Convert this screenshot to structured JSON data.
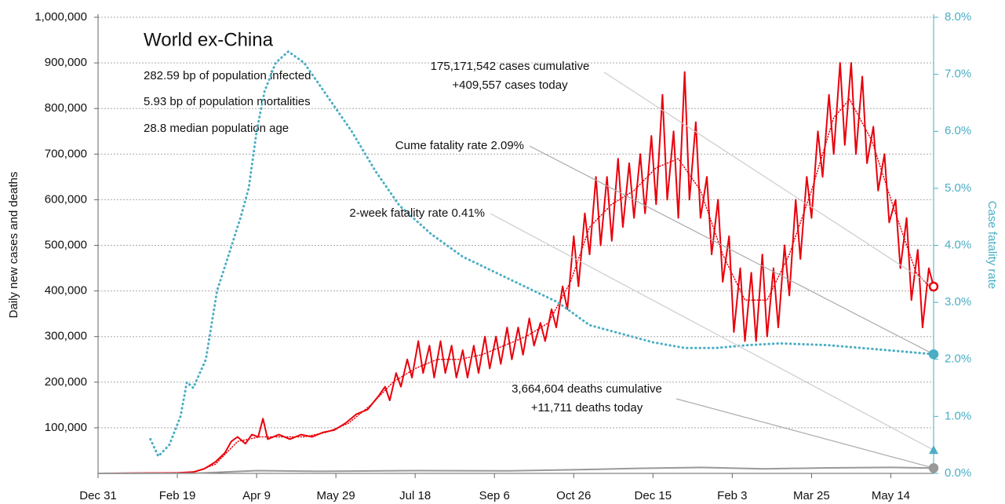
{
  "chart_data": {
    "type": "line",
    "title": "World ex-China",
    "subtitle": [
      "282.59 bp of population infected",
      "5.93 bp of population mortalities",
      "28.8 median population age"
    ],
    "ylabel": "Daily new cases and deaths",
    "y2label": "Case fatality rate",
    "xlim": [
      0,
      527
    ],
    "xticks": [
      {
        "value": 0,
        "label": "Dec 31"
      },
      {
        "value": 50,
        "label": "Feb 19"
      },
      {
        "value": 100,
        "label": "Apr 9"
      },
      {
        "value": 150,
        "label": "May 29"
      },
      {
        "value": 200,
        "label": "Jul 18"
      },
      {
        "value": 250,
        "label": "Sep 6"
      },
      {
        "value": 300,
        "label": "Oct 26"
      },
      {
        "value": 350,
        "label": "Dec 15"
      },
      {
        "value": 400,
        "label": "Feb 3"
      },
      {
        "value": 450,
        "label": "Mar 25"
      },
      {
        "value": 500,
        "label": "May 14"
      }
    ],
    "ylim": [
      0,
      1000000
    ],
    "yticks": [
      {
        "value": 100000,
        "label": "100,000"
      },
      {
        "value": 200000,
        "label": "200,000"
      },
      {
        "value": 300000,
        "label": "300,000"
      },
      {
        "value": 400000,
        "label": "400,000"
      },
      {
        "value": 500000,
        "label": "500,000"
      },
      {
        "value": 600000,
        "label": "600,000"
      },
      {
        "value": 700000,
        "label": "700,000"
      },
      {
        "value": 800000,
        "label": "800,000"
      },
      {
        "value": 900000,
        "label": "900,000"
      },
      {
        "value": 1000000,
        "label": "1,000,000"
      }
    ],
    "y2lim": [
      0,
      8
    ],
    "y2ticks": [
      {
        "value": 0,
        "label": "0.0%"
      },
      {
        "value": 1,
        "label": "1.0%"
      },
      {
        "value": 2,
        "label": "2.0%"
      },
      {
        "value": 3,
        "label": "3.0%"
      },
      {
        "value": 4,
        "label": "4.0%"
      },
      {
        "value": 5,
        "label": "5.0%"
      },
      {
        "value": 6,
        "label": "6.0%"
      },
      {
        "value": 7,
        "label": "7.0%"
      },
      {
        "value": 8,
        "label": "8.0%"
      }
    ],
    "grid": true,
    "series": [
      {
        "color": "#e8000b",
        "style": "solid",
        "width": 2,
        "end_marker": "circle",
        "x": [
          0,
          50,
          60,
          67,
          74,
          80,
          84,
          88,
          93,
          97,
          101,
          104,
          107,
          114,
          121,
          128,
          135,
          142,
          149,
          156,
          163,
          170,
          177,
          181,
          184,
          188,
          191,
          195,
          198,
          202,
          205,
          209,
          212,
          216,
          219,
          223,
          226,
          230,
          233,
          237,
          240,
          244,
          247,
          251,
          254,
          258,
          261,
          265,
          268,
          272,
          275,
          279,
          282,
          286,
          289,
          293,
          296,
          300,
          303,
          307,
          310,
          314,
          317,
          321,
          324,
          328,
          331,
          335,
          338,
          342,
          345,
          349,
          352,
          356,
          359,
          363,
          366,
          370,
          373,
          377,
          380,
          384,
          387,
          391,
          394,
          398,
          401,
          405,
          408,
          412,
          415,
          419,
          422,
          426,
          429,
          433,
          436,
          440,
          443,
          447,
          450,
          454,
          457,
          461,
          464,
          468,
          471,
          475,
          478,
          482,
          485,
          489,
          492,
          496,
          499,
          503,
          506,
          510,
          513,
          517,
          520,
          524,
          527
        ],
        "values": [
          0,
          1000,
          3000,
          10000,
          25000,
          45000,
          70000,
          80000,
          65000,
          85000,
          80000,
          120000,
          75000,
          85000,
          75000,
          85000,
          80000,
          90000,
          95000,
          110000,
          130000,
          140000,
          170000,
          190000,
          160000,
          220000,
          190000,
          250000,
          210000,
          290000,
          220000,
          280000,
          210000,
          290000,
          220000,
          280000,
          210000,
          270000,
          210000,
          280000,
          220000,
          300000,
          230000,
          300000,
          240000,
          320000,
          250000,
          320000,
          260000,
          340000,
          280000,
          330000,
          290000,
          360000,
          320000,
          410000,
          360000,
          520000,
          410000,
          570000,
          480000,
          650000,
          500000,
          650000,
          510000,
          690000,
          540000,
          680000,
          560000,
          700000,
          570000,
          740000,
          590000,
          830000,
          600000,
          750000,
          560000,
          880000,
          600000,
          770000,
          560000,
          650000,
          480000,
          600000,
          420000,
          520000,
          310000,
          450000,
          290000,
          440000,
          290000,
          480000,
          300000,
          450000,
          320000,
          500000,
          390000,
          600000,
          470000,
          650000,
          560000,
          750000,
          650000,
          830000,
          700000,
          900000,
          720000,
          900000,
          700000,
          870000,
          680000,
          760000,
          620000,
          700000,
          550000,
          600000,
          450000,
          560000,
          380000,
          490000,
          320000,
          450000,
          409557
        ]
      },
      {
        "color": "#e8000b",
        "style": "dotted",
        "width": 1.5,
        "x": [
          0,
          60,
          74,
          88,
          102,
          116,
          130,
          144,
          158,
          172,
          186,
          200,
          214,
          228,
          242,
          256,
          270,
          284,
          298,
          310,
          324,
          338,
          352,
          366,
          380,
          394,
          408,
          422,
          436,
          450,
          464,
          474,
          488,
          502,
          516,
          527
        ],
        "values": [
          0,
          2000,
          20000,
          70000,
          80000,
          80000,
          80000,
          90000,
          110000,
          150000,
          200000,
          230000,
          250000,
          250000,
          260000,
          280000,
          300000,
          330000,
          420000,
          540000,
          590000,
          620000,
          670000,
          690000,
          620000,
          480000,
          380000,
          380000,
          480000,
          620000,
          780000,
          820000,
          730000,
          580000,
          440000,
          400000
        ]
      },
      {
        "color": "#4aaec4",
        "style": "dotted",
        "width": 3,
        "axis": "y2",
        "end_marker": "circle",
        "x": [
          33,
          38,
          45,
          52,
          56,
          60,
          68,
          75,
          82,
          90,
          95,
          100,
          105,
          112,
          120,
          130,
          145,
          160,
          175,
          190,
          210,
          230,
          260,
          290,
          310,
          330,
          350,
          370,
          390,
          410,
          430,
          460,
          490,
          527
        ],
        "values": [
          0.6,
          0.3,
          0.5,
          1.0,
          1.6,
          1.5,
          2.0,
          3.2,
          3.8,
          4.5,
          5.0,
          6.0,
          6.7,
          7.2,
          7.4,
          7.2,
          6.6,
          6.0,
          5.3,
          4.7,
          4.2,
          3.8,
          3.4,
          3.0,
          2.6,
          2.45,
          2.3,
          2.2,
          2.2,
          2.25,
          2.28,
          2.25,
          2.18,
          2.09
        ]
      },
      {
        "color": "#999999",
        "style": "solid",
        "width": 2,
        "end_marker": "circle",
        "x": [
          0,
          60,
          80,
          100,
          140,
          200,
          260,
          300,
          340,
          380,
          420,
          460,
          500,
          527
        ],
        "values": [
          0,
          100,
          3000,
          6000,
          4500,
          6000,
          5500,
          8000,
          11000,
          13000,
          10000,
          12000,
          13000,
          11711
        ]
      }
    ],
    "annotations": [
      {
        "lines": [
          "175,171,542 cases cumulative",
          "+409,557 cases today"
        ]
      },
      {
        "lines": [
          "Cume fatality rate 2.09%"
        ]
      },
      {
        "lines": [
          "2-week fatality rate 0.41%"
        ],
        "value": 0.41,
        "axis": "y2",
        "marker": "triangle"
      },
      {
        "lines": [
          "3,664,604 deaths cumulative",
          "+11,711 deaths today"
        ]
      }
    ]
  }
}
